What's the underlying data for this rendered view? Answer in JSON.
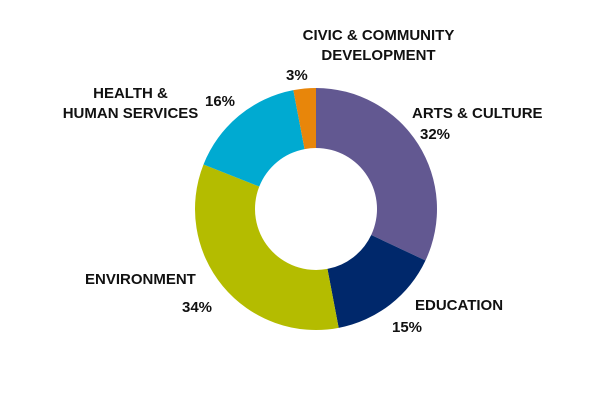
{
  "chart_data": {
    "type": "pie",
    "donut": true,
    "title": "",
    "legend": "none",
    "slices": [
      {
        "label": "ARTS & CULTURE",
        "value": 32,
        "pct_label": "32%",
        "color": "#625891"
      },
      {
        "label": "EDUCATION",
        "value": 15,
        "pct_label": "15%",
        "color": "#00286b"
      },
      {
        "label": "ENVIRONMENT",
        "value": 34,
        "pct_label": "34%",
        "color": "#b4bc00"
      },
      {
        "label": "HEALTH &\nHUMAN SERVICES",
        "value": 16,
        "pct_label": "16%",
        "color": "#00aad1"
      },
      {
        "label": "CIVIC & COMMUNITY\nDEVELOPMENT",
        "value": 3,
        "pct_label": "3%",
        "color": "#e8860a"
      }
    ]
  }
}
